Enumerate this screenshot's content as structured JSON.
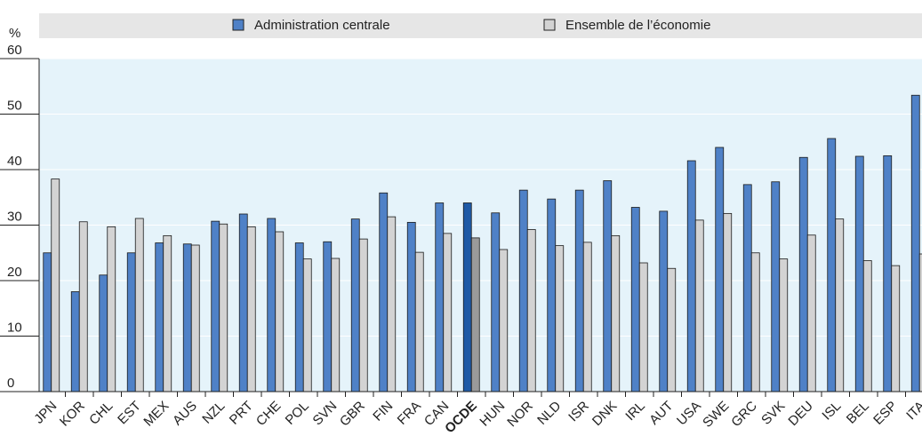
{
  "chart_data": {
    "type": "bar",
    "y_unit": "%",
    "categories": [
      "JPN",
      "KOR",
      "CHL",
      "EST",
      "MEX",
      "AUS",
      "NZL",
      "PRT",
      "CHE",
      "POL",
      "SVN",
      "GBR",
      "FIN",
      "FRA",
      "CAN",
      "OCDE",
      "HUN",
      "NOR",
      "NLD",
      "ISR",
      "DNK",
      "IRL",
      "AUT",
      "USA",
      "SWE",
      "GRC",
      "SVK",
      "DEU",
      "ISL",
      "BEL",
      "ESP",
      "ITA"
    ],
    "highlight": "OCDE",
    "series": [
      {
        "name": "Administration centrale",
        "color": "#4f81c7",
        "highlight_color": "#1f5aa6",
        "values": [
          25,
          18,
          21,
          25,
          26.8,
          26.6,
          30.7,
          32,
          31.2,
          26.8,
          27,
          31.1,
          35.8,
          30.5,
          34,
          34,
          32.2,
          36.3,
          34.7,
          36.3,
          38,
          33.2,
          32.5,
          41.6,
          44,
          37.3,
          37.8,
          42.2,
          45.6,
          42.4,
          42.5,
          53.4
        ]
      },
      {
        "name": "Ensemble de l’économie",
        "color": "#d3d3d3",
        "highlight_color": "#9a9a9a",
        "values": [
          38.3,
          30.6,
          29.7,
          31.2,
          28.1,
          26.4,
          30.2,
          29.7,
          28.8,
          23.9,
          24,
          27.5,
          31.5,
          25.1,
          28.5,
          27.7,
          25.6,
          29.2,
          26.3,
          26.9,
          28.1,
          23.2,
          22.2,
          30.9,
          32.1,
          25,
          23.9,
          28.2,
          31.1,
          23.6,
          22.7,
          24.8
        ]
      }
    ],
    "ylim": [
      0,
      60
    ],
    "yticks": [
      0,
      10,
      20,
      30,
      40,
      50,
      60
    ],
    "grid": true,
    "legend": "top"
  }
}
